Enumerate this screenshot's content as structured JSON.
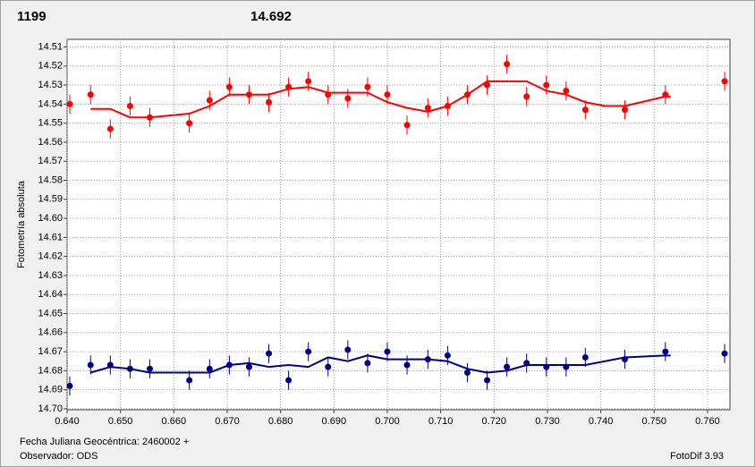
{
  "chart_data": {
    "type": "scatter",
    "annotations": [
      {
        "text": "1199",
        "color": "#ff0000"
      },
      {
        "text": "14.692",
        "color": "#00008b"
      }
    ],
    "ylabel": "Fotometría absoluta",
    "xlabel": "Fecha Juliana Geocéntrica: 2460002 +",
    "notes": [
      "Observador: ODS",
      "FotoDif 3.93"
    ],
    "xlim": [
      0.64,
      0.7642
    ],
    "ylim": [
      14.506,
      14.7005
    ],
    "y_inverted": true,
    "grid": true,
    "xticks": [
      {
        "value": 0.64,
        "label": "0.640"
      },
      {
        "value": 0.65,
        "label": "0.650"
      },
      {
        "value": 0.66,
        "label": "0.660"
      },
      {
        "value": 0.67,
        "label": "0.670"
      },
      {
        "value": 0.68,
        "label": "0.680"
      },
      {
        "value": 0.69,
        "label": "0.690"
      },
      {
        "value": 0.7,
        "label": "0.700"
      },
      {
        "value": 0.71,
        "label": "0.710"
      },
      {
        "value": 0.72,
        "label": "0.720"
      },
      {
        "value": 0.73,
        "label": "0.730"
      },
      {
        "value": 0.74,
        "label": "0.740"
      },
      {
        "value": 0.75,
        "label": "0.750"
      },
      {
        "value": 0.76,
        "label": "0.760"
      }
    ],
    "yticks": [
      14.51,
      14.52,
      14.53,
      14.54,
      14.55,
      14.56,
      14.57,
      14.58,
      14.59,
      {
        "value": 14.6,
        "label": "14.60"
      },
      14.61,
      14.62,
      14.63,
      14.64,
      14.65,
      14.66,
      14.67,
      14.68,
      14.69,
      {
        "value": 14.7,
        "label": "14.70"
      }
    ],
    "series": [
      {
        "style": "points",
        "color": "#ff0000",
        "x": [
          0.6405,
          0.6444,
          0.6481,
          0.6518,
          0.6555,
          0.6629,
          0.6667,
          0.6704,
          0.6741,
          0.6778,
          0.6815,
          0.6852,
          0.6889,
          0.6926,
          0.6963,
          0.7,
          0.7037,
          0.7076,
          0.7113,
          0.715,
          0.7187,
          0.7224,
          0.7261,
          0.7298,
          0.7335,
          0.7371,
          0.7445,
          0.7521,
          0.7632
        ],
        "values": [
          14.54,
          14.535,
          14.553,
          14.541,
          14.547,
          14.55,
          14.538,
          14.531,
          14.535,
          14.539,
          14.531,
          14.528,
          14.535,
          14.537,
          14.531,
          14.535,
          14.551,
          14.542,
          14.541,
          14.535,
          14.53,
          14.519,
          14.536,
          14.53,
          14.533,
          14.543,
          14.543,
          14.535,
          14.528
        ],
        "errors": [
          0.005,
          0.005,
          0.005,
          0.005,
          0.005,
          0.005,
          0.005,
          0.005,
          0.005,
          0.005,
          0.005,
          0.005,
          0.005,
          0.005,
          0.005,
          0.005,
          0.005,
          0.005,
          0.005,
          0.005,
          0.005,
          0.005,
          0.005,
          0.005,
          0.005,
          0.005,
          0.005,
          0.005,
          0.005
        ]
      },
      {
        "style": "line",
        "color": "#ff0000",
        "x": [
          0.6444,
          0.6481,
          0.6518,
          0.6555,
          0.6629,
          0.6667,
          0.6704,
          0.6741,
          0.6778,
          0.6815,
          0.6852,
          0.6889,
          0.6926,
          0.6963,
          0.7,
          0.7037,
          0.7076,
          0.7113,
          0.715,
          0.7187,
          0.7224,
          0.7261,
          0.7298,
          0.7335,
          0.7371,
          0.7408,
          0.7445,
          0.7521,
          0.7531
        ],
        "values": [
          14.5425,
          14.5425,
          14.547,
          14.547,
          14.545,
          14.541,
          14.535,
          14.535,
          14.535,
          14.532,
          14.531,
          14.534,
          14.534,
          14.534,
          14.539,
          14.542,
          14.544,
          14.541,
          14.535,
          14.528,
          14.528,
          14.528,
          14.533,
          14.535,
          14.539,
          14.541,
          14.541,
          14.536,
          14.536
        ]
      },
      {
        "style": "points",
        "color": "#00008b",
        "x": [
          0.6405,
          0.6444,
          0.6481,
          0.6518,
          0.6555,
          0.6629,
          0.6667,
          0.6704,
          0.6741,
          0.6778,
          0.6815,
          0.6852,
          0.6889,
          0.6926,
          0.6963,
          0.7,
          0.7037,
          0.7076,
          0.7113,
          0.715,
          0.7187,
          0.7224,
          0.7261,
          0.7298,
          0.7335,
          0.7371,
          0.7445,
          0.7521,
          0.7632
        ],
        "values": [
          14.688,
          14.677,
          14.677,
          14.679,
          14.679,
          14.685,
          14.679,
          14.677,
          14.678,
          14.671,
          14.685,
          14.67,
          14.678,
          14.669,
          14.676,
          14.67,
          14.677,
          14.674,
          14.672,
          14.681,
          14.685,
          14.678,
          14.676,
          14.678,
          14.678,
          14.673,
          14.674,
          14.67,
          14.671
        ],
        "errors": [
          0.005,
          0.005,
          0.005,
          0.005,
          0.005,
          0.005,
          0.005,
          0.005,
          0.005,
          0.005,
          0.005,
          0.005,
          0.005,
          0.005,
          0.005,
          0.005,
          0.005,
          0.005,
          0.005,
          0.005,
          0.005,
          0.005,
          0.005,
          0.005,
          0.005,
          0.005,
          0.005,
          0.005,
          0.005
        ]
      },
      {
        "style": "line",
        "color": "#00008b",
        "x": [
          0.6444,
          0.6481,
          0.6518,
          0.6555,
          0.6667,
          0.6704,
          0.6741,
          0.6778,
          0.6815,
          0.6852,
          0.6889,
          0.6926,
          0.6963,
          0.7,
          0.7076,
          0.7113,
          0.715,
          0.7187,
          0.7224,
          0.7261,
          0.7298,
          0.7371,
          0.7445,
          0.7521,
          0.7531
        ],
        "values": [
          14.681,
          14.678,
          14.679,
          14.681,
          14.681,
          14.677,
          14.676,
          14.678,
          14.677,
          14.678,
          14.673,
          14.675,
          14.672,
          14.674,
          14.674,
          14.675,
          14.679,
          14.681,
          14.68,
          14.677,
          14.677,
          14.677,
          14.673,
          14.672,
          14.672
        ]
      }
    ]
  }
}
